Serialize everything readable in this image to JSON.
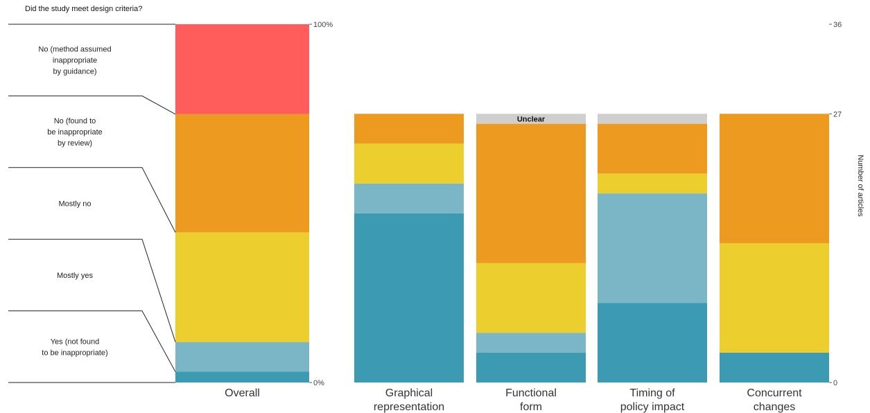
{
  "chart_data": {
    "type": "bar",
    "question": "Did the study meet design criteria?",
    "overall": {
      "category": "Overall",
      "axis_ticks": [
        "100%",
        "0%"
      ],
      "segments": [
        {
          "name": "Yes (not found\nto be inappropriate)",
          "percent": 3,
          "color": "#3d9ab3"
        },
        {
          "name": "Mostly yes",
          "percent": 8.3,
          "color": "#7ab6c5"
        },
        {
          "name": "Mostly no",
          "percent": 30.6,
          "color": "#ecce2e"
        },
        {
          "name": "No (found to\nbe inappropriate\nby review)",
          "percent": 33,
          "color": "#ec9a20"
        },
        {
          "name": "No (method assumed\ninappropriate\nby guidance)",
          "percent": 25.1,
          "color": "#ff5c5c"
        }
      ]
    },
    "criteria": {
      "ylabel": "Number of articles",
      "ylim": [
        0,
        36
      ],
      "ticks": [
        "0",
        "27",
        "36"
      ],
      "series_order": [
        "Yes",
        "Mostly yes",
        "Mostly no",
        "No",
        "Unclear"
      ],
      "colors": {
        "Yes": "#3d9ab3",
        "Mostly yes": "#7ab6c5",
        "Mostly no": "#ecce2e",
        "No": "#ec9a20",
        "Unclear": "#cfcfcf"
      },
      "unclear_label": "Unclear",
      "categories": [
        {
          "label": "Graphical\nrepresentation",
          "Yes": 17,
          "Mostly yes": 3,
          "Mostly no": 4,
          "No": 3,
          "Unclear": 0
        },
        {
          "label": "Functional\nform",
          "Yes": 3,
          "Mostly yes": 2,
          "Mostly no": 7,
          "No": 14,
          "Unclear": 1
        },
        {
          "label": "Timing of\npolicy impact",
          "Yes": 8,
          "Mostly yes": 11,
          "Mostly no": 2,
          "No": 5,
          "Unclear": 1
        },
        {
          "label": "Concurrent\nchanges",
          "Yes": 3,
          "Mostly yes": 0,
          "Mostly no": 11,
          "No": 13,
          "Unclear": 0
        }
      ]
    }
  }
}
